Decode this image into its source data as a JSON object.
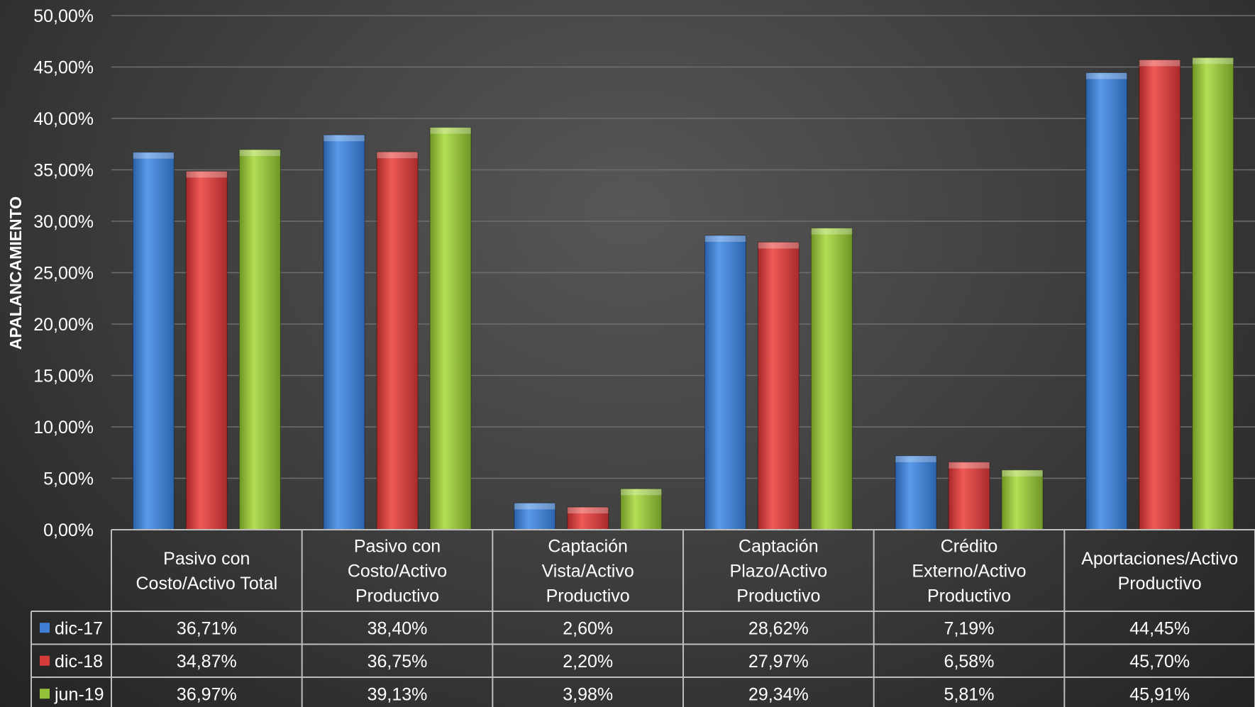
{
  "chart_data": {
    "type": "bar",
    "ylabel": "APALANCAMIENTO",
    "ylim": [
      0,
      50
    ],
    "y_ticks": [
      "0,00%",
      "5,00%",
      "10,00%",
      "15,00%",
      "20,00%",
      "25,00%",
      "30,00%",
      "35,00%",
      "40,00%",
      "45,00%",
      "50,00%"
    ],
    "y_tick_values": [
      0,
      5,
      10,
      15,
      20,
      25,
      30,
      35,
      40,
      45,
      50
    ],
    "grid": true,
    "legend": "data-table",
    "categories": [
      [
        "Pasivo con",
        "Costo/Activo Total"
      ],
      [
        "Pasivo con",
        "Costo/Activo",
        "Productivo"
      ],
      [
        "Captación",
        "Vista/Activo",
        "Productivo"
      ],
      [
        "Captación",
        "Plazo/Activo",
        "Productivo"
      ],
      [
        "Crédito",
        "Externo/Activo",
        "Productivo"
      ],
      [
        "Aportaciones/Activo",
        "Productivo"
      ]
    ],
    "series": [
      {
        "name": "dic-17",
        "color": "#3f7fd4",
        "values": [
          36.71,
          38.4,
          2.6,
          28.62,
          7.19,
          44.45
        ],
        "labels": [
          "36,71%",
          "38,40%",
          "2,60%",
          "28,62%",
          "7,19%",
          "44,45%"
        ]
      },
      {
        "name": "dic-18",
        "color": "#d53b3b",
        "values": [
          34.87,
          36.75,
          2.2,
          27.97,
          6.58,
          45.7
        ],
        "labels": [
          "34,87%",
          "36,75%",
          "2,20%",
          "27,97%",
          "6,58%",
          "45,70%"
        ]
      },
      {
        "name": "jun-19",
        "color": "#94c23a",
        "values": [
          36.97,
          39.13,
          3.98,
          29.34,
          5.81,
          45.91
        ],
        "labels": [
          "36,97%",
          "39,13%",
          "3,98%",
          "29,34%",
          "5,81%",
          "45,91%"
        ]
      }
    ]
  }
}
